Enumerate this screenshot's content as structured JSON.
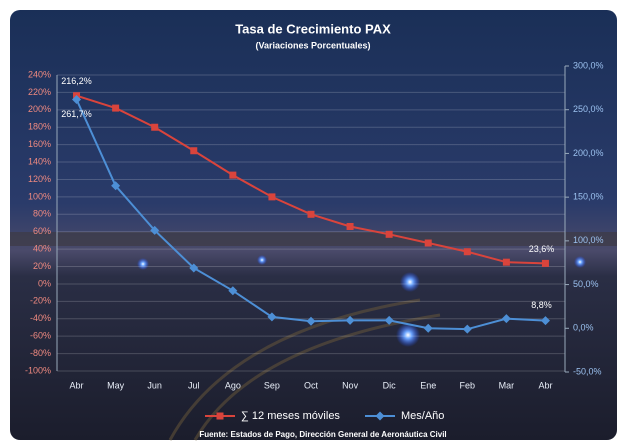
{
  "chart_data": {
    "type": "line",
    "title": "Tasa de Crecimiento PAX",
    "subtitle": "(Variaciones Porcentuales)",
    "source": "Fuente: Estados de Pago, Dirección General de Aeronáutica Civil",
    "categories": [
      "Abr",
      "May",
      "Jun",
      "Jul",
      "Ago",
      "Sep",
      "Oct",
      "Nov",
      "Dic",
      "Ene",
      "Feb",
      "Mar",
      "Abr"
    ],
    "series": [
      {
        "name": "∑ 12 meses móviles",
        "color": "#d9443c",
        "marker": "square",
        "values": [
          216.2,
          202,
          180,
          153,
          125,
          100,
          80,
          66,
          57,
          47,
          37,
          25,
          23.6
        ],
        "value_labels": [
          "216,2%",
          null,
          null,
          null,
          null,
          null,
          null,
          null,
          null,
          null,
          null,
          null,
          "23,6%"
        ]
      },
      {
        "name": "Mes/Año",
        "color": "#4d8fd6",
        "marker": "diamond",
        "axis": "y2",
        "values": [
          261.7,
          163,
          112,
          69,
          43,
          13,
          8,
          9,
          9,
          0,
          -1,
          11,
          8.8
        ],
        "value_labels": [
          "261,7%",
          null,
          null,
          null,
          null,
          null,
          null,
          null,
          null,
          null,
          null,
          null,
          "8,8%"
        ]
      }
    ],
    "ylim": [
      -100,
      240
    ],
    "yticks": [
      {
        "value": -100,
        "label": "-100%"
      },
      {
        "value": -80,
        "label": "-80%"
      },
      {
        "value": -60,
        "label": "-60%"
      },
      {
        "value": -40,
        "label": "-40%"
      },
      {
        "value": -20,
        "label": "-20%"
      },
      {
        "value": 0,
        "label": "0%"
      },
      {
        "value": 20,
        "label": "20%"
      },
      {
        "value": 40,
        "label": "40%"
      },
      {
        "value": 60,
        "label": "60%"
      },
      {
        "value": 80,
        "label": "80%"
      },
      {
        "value": 100,
        "label": "100%"
      },
      {
        "value": 120,
        "label": "120%"
      },
      {
        "value": 140,
        "label": "140%"
      },
      {
        "value": 160,
        "label": "160%"
      },
      {
        "value": 180,
        "label": "180%"
      },
      {
        "value": 200,
        "label": "200%"
      },
      {
        "value": 220,
        "label": "220%"
      },
      {
        "value": 240,
        "label": "240%"
      }
    ],
    "y2lim": [
      -50,
      300
    ],
    "y2ticks": [
      {
        "value": -50,
        "label": "-50,0%"
      },
      {
        "value": 0,
        "label": "0,0%"
      },
      {
        "value": 50,
        "label": "50,0%"
      },
      {
        "value": 100,
        "label": "100,0%"
      },
      {
        "value": 150,
        "label": "150,0%"
      },
      {
        "value": 200,
        "label": "200,0%"
      },
      {
        "value": 250,
        "label": "250,0%"
      },
      {
        "value": 300,
        "label": "300,0%"
      }
    ],
    "grid": true,
    "legend": "bottom"
  }
}
